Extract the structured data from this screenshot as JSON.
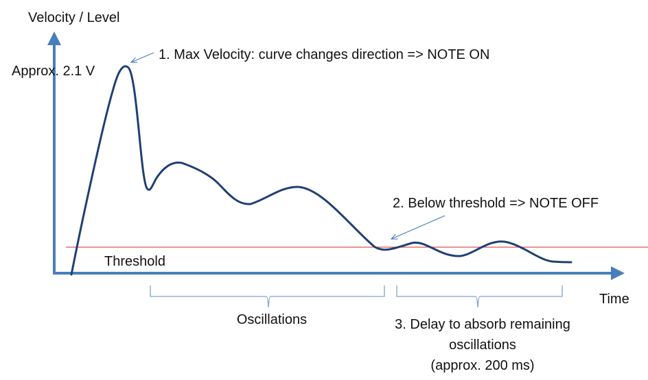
{
  "labels": {
    "y_axis": "Velocity / Level",
    "x_axis": "Time",
    "peak_value": "Approx. 2.1 V",
    "threshold": "Threshold",
    "oscillations": "Oscillations"
  },
  "annotations": {
    "note_on": "1. Max Velocity: curve changes direction => NOTE ON",
    "note_off": "2. Below threshold => NOTE OFF",
    "delay_line1": "3. Delay to absorb remaining",
    "delay_line2": "oscillations",
    "delay_line3": "(approx. 200 ms)"
  },
  "colors": {
    "axis": "#4a7ebb",
    "curve": "#1f3f73",
    "threshold_line": "#d9534f",
    "arrow": "#4a7ebb",
    "brace": "#7fa3cf",
    "text": "#111111"
  }
}
